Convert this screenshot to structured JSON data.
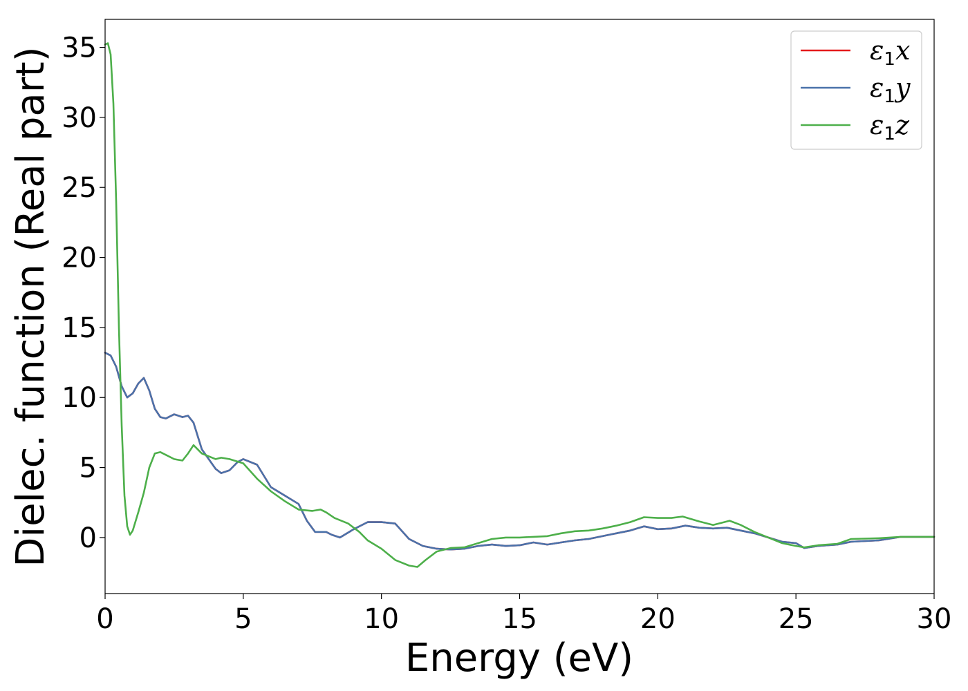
{
  "chart_data": {
    "type": "line",
    "title": "",
    "xlabel": "Energy (eV)",
    "ylabel": "Dielec. function (Real part)",
    "xlim": [
      0,
      30
    ],
    "ylim": [
      -4,
      37
    ],
    "xticks": [
      0,
      5,
      10,
      15,
      20,
      25,
      30
    ],
    "yticks": [
      0,
      5,
      10,
      15,
      20,
      25,
      30,
      35
    ],
    "grid": false,
    "legend_position": "top-right",
    "series": [
      {
        "name": "ε1x",
        "legend_symbol": "ε",
        "legend_sub": "1",
        "legend_axis": "x",
        "color": "#e41a1c",
        "x": [
          0,
          0.2,
          0.4,
          0.6,
          0.8,
          1.0,
          1.2,
          1.4,
          1.6,
          1.8,
          2.0,
          2.2,
          2.5,
          2.8,
          3.0,
          3.2,
          3.5,
          4.0,
          4.2,
          4.5,
          4.8,
          5.0,
          5.5,
          6.0,
          6.5,
          7.0,
          7.3,
          7.6,
          8.0,
          8.2,
          8.5,
          9.0,
          9.5,
          10.0,
          10.5,
          11.0,
          11.5,
          12.0,
          12.5,
          13.0,
          13.5,
          14.0,
          14.5,
          15.0,
          15.5,
          16.0,
          16.5,
          17.0,
          17.5,
          18.0,
          18.5,
          19.0,
          19.5,
          20.0,
          20.5,
          21.0,
          21.5,
          22.0,
          22.5,
          23.0,
          23.5,
          24.0,
          24.5,
          25.0,
          25.3,
          25.8,
          26.5,
          27.0,
          28.0,
          28.8,
          29.5,
          30.0
        ],
        "y": [
          13.2,
          13.0,
          12.2,
          10.8,
          10.0,
          10.3,
          11.0,
          11.4,
          10.5,
          9.2,
          8.6,
          8.5,
          8.8,
          8.6,
          8.7,
          8.2,
          6.3,
          4.9,
          4.6,
          4.8,
          5.4,
          5.6,
          5.2,
          3.6,
          3.0,
          2.4,
          1.2,
          0.4,
          0.4,
          0.2,
          0.0,
          0.6,
          1.1,
          1.1,
          1.0,
          -0.1,
          -0.6,
          -0.8,
          -0.85,
          -0.8,
          -0.6,
          -0.5,
          -0.6,
          -0.55,
          -0.35,
          -0.5,
          -0.35,
          -0.2,
          -0.1,
          0.1,
          0.3,
          0.5,
          0.8,
          0.6,
          0.65,
          0.85,
          0.7,
          0.65,
          0.7,
          0.5,
          0.3,
          0.0,
          -0.3,
          -0.4,
          -0.75,
          -0.6,
          -0.5,
          -0.3,
          -0.2,
          0.05,
          0.05,
          0.05
        ]
      },
      {
        "name": "ε1y",
        "legend_symbol": "ε",
        "legend_sub": "1",
        "legend_axis": "y",
        "color": "#4a72aa",
        "x": [
          0,
          0.2,
          0.4,
          0.6,
          0.8,
          1.0,
          1.2,
          1.4,
          1.6,
          1.8,
          2.0,
          2.2,
          2.5,
          2.8,
          3.0,
          3.2,
          3.5,
          4.0,
          4.2,
          4.5,
          4.8,
          5.0,
          5.5,
          6.0,
          6.5,
          7.0,
          7.3,
          7.6,
          8.0,
          8.2,
          8.5,
          9.0,
          9.5,
          10.0,
          10.5,
          11.0,
          11.5,
          12.0,
          12.5,
          13.0,
          13.5,
          14.0,
          14.5,
          15.0,
          15.5,
          16.0,
          16.5,
          17.0,
          17.5,
          18.0,
          18.5,
          19.0,
          19.5,
          20.0,
          20.5,
          21.0,
          21.5,
          22.0,
          22.5,
          23.0,
          23.5,
          24.0,
          24.5,
          25.0,
          25.3,
          25.8,
          26.5,
          27.0,
          28.0,
          28.8,
          29.5,
          30.0
        ],
        "y": [
          13.2,
          13.0,
          12.2,
          10.8,
          10.0,
          10.3,
          11.0,
          11.4,
          10.5,
          9.2,
          8.6,
          8.5,
          8.8,
          8.6,
          8.7,
          8.2,
          6.3,
          4.9,
          4.6,
          4.8,
          5.4,
          5.6,
          5.2,
          3.6,
          3.0,
          2.4,
          1.2,
          0.4,
          0.4,
          0.2,
          0.0,
          0.6,
          1.1,
          1.1,
          1.0,
          -0.1,
          -0.6,
          -0.8,
          -0.85,
          -0.8,
          -0.6,
          -0.5,
          -0.6,
          -0.55,
          -0.35,
          -0.5,
          -0.35,
          -0.2,
          -0.1,
          0.1,
          0.3,
          0.5,
          0.8,
          0.6,
          0.65,
          0.85,
          0.7,
          0.65,
          0.7,
          0.5,
          0.3,
          0.0,
          -0.3,
          -0.4,
          -0.75,
          -0.6,
          -0.5,
          -0.3,
          -0.2,
          0.05,
          0.05,
          0.05
        ]
      },
      {
        "name": "ε1z",
        "legend_symbol": "ε",
        "legend_sub": "1",
        "legend_axis": "z",
        "color": "#4daf4a",
        "x": [
          0,
          0.1,
          0.2,
          0.3,
          0.4,
          0.5,
          0.6,
          0.7,
          0.8,
          0.9,
          1.0,
          1.2,
          1.4,
          1.6,
          1.8,
          2.0,
          2.2,
          2.5,
          2.8,
          3.0,
          3.2,
          3.5,
          4.0,
          4.2,
          4.5,
          5.0,
          5.5,
          6.0,
          6.5,
          7.0,
          7.5,
          7.8,
          8.0,
          8.3,
          8.8,
          9.2,
          9.5,
          10.0,
          10.5,
          11.0,
          11.3,
          11.6,
          12.0,
          12.5,
          13.0,
          13.5,
          14.0,
          14.5,
          15.0,
          15.5,
          16.0,
          16.5,
          17.0,
          17.5,
          18.0,
          18.5,
          19.0,
          19.5,
          20.0,
          20.5,
          20.9,
          21.5,
          22.0,
          22.6,
          23.0,
          23.5,
          24.0,
          24.5,
          25.0,
          25.3,
          25.8,
          26.5,
          27.0,
          28.0,
          28.8,
          29.5,
          30.0
        ],
        "y": [
          35.2,
          35.3,
          34.5,
          31.0,
          24.0,
          15.0,
          8.0,
          3.0,
          0.8,
          0.2,
          0.5,
          1.8,
          3.2,
          5.0,
          6.0,
          6.1,
          5.9,
          5.6,
          5.5,
          6.0,
          6.6,
          6.0,
          5.6,
          5.7,
          5.6,
          5.3,
          4.2,
          3.3,
          2.6,
          2.0,
          1.9,
          2.0,
          1.8,
          1.4,
          1.0,
          0.4,
          -0.2,
          -0.8,
          -1.6,
          -2.0,
          -2.1,
          -1.6,
          -1.0,
          -0.75,
          -0.7,
          -0.4,
          -0.1,
          0.0,
          0.0,
          0.05,
          0.1,
          0.3,
          0.45,
          0.5,
          0.65,
          0.85,
          1.1,
          1.45,
          1.4,
          1.4,
          1.5,
          1.15,
          0.9,
          1.2,
          0.9,
          0.4,
          0.0,
          -0.4,
          -0.6,
          -0.7,
          -0.55,
          -0.45,
          -0.1,
          -0.05,
          0.05,
          0.05,
          0.05
        ]
      }
    ]
  }
}
